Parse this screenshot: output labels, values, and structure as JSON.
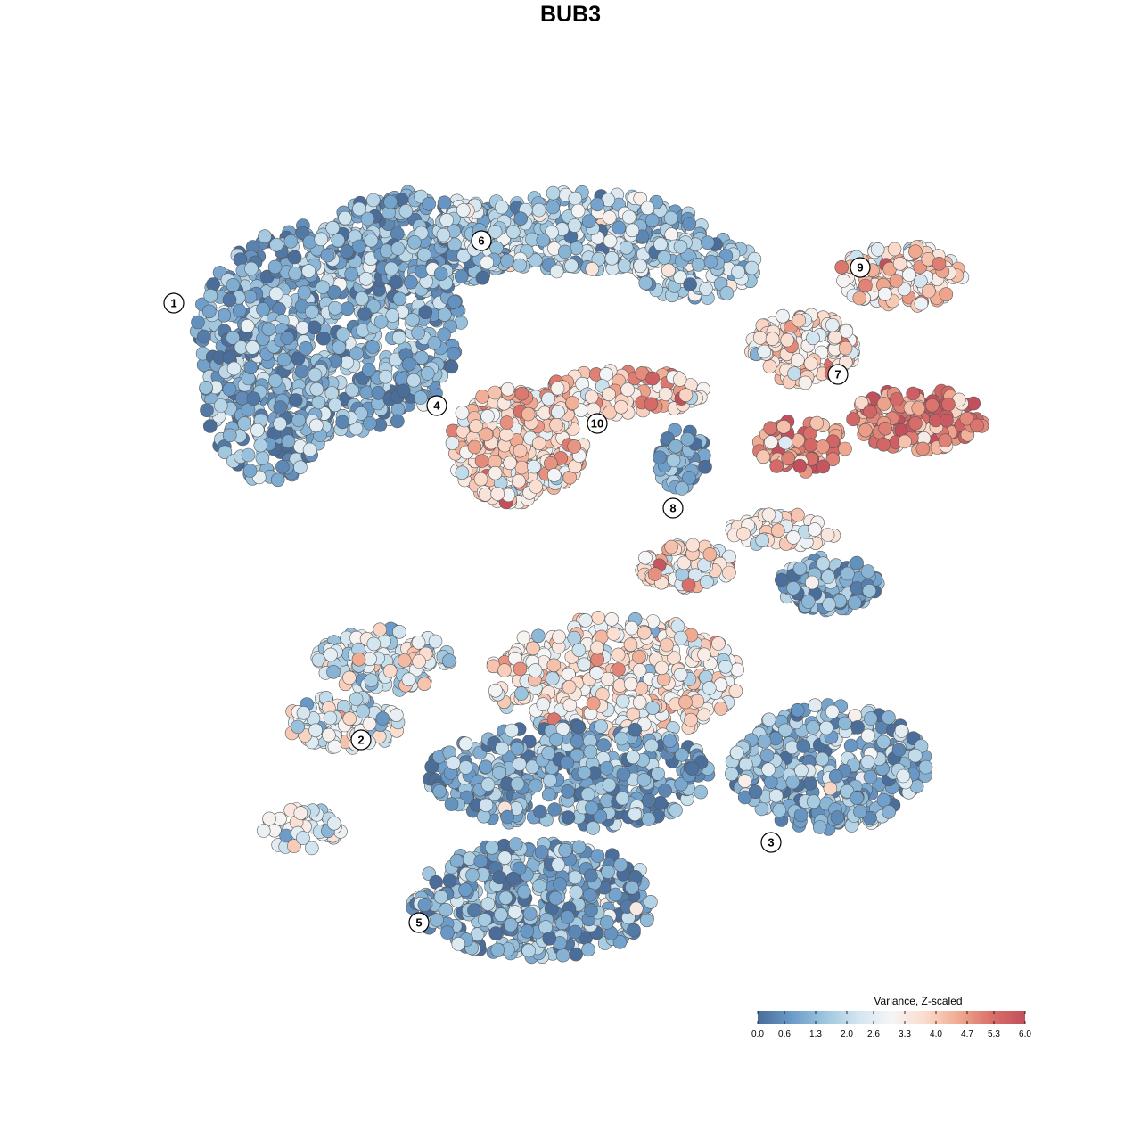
{
  "chart_data": {
    "type": "scatter",
    "title": "BUB3",
    "xlabel": "",
    "ylabel": "",
    "colorbar": {
      "title": "Variance, Z-scaled",
      "min": 0.0,
      "max": 6.0,
      "ticks": [
        "0.0",
        "0.6",
        "1.3",
        "2.0",
        "2.6",
        "3.3",
        "4.0",
        "4.7",
        "5.3",
        "6.0"
      ],
      "tick_values": [
        0.0,
        0.6,
        1.3,
        2.0,
        2.6,
        3.3,
        4.0,
        4.7,
        5.3,
        6.0
      ],
      "colors": [
        "#4a6d99",
        "#6a9ac8",
        "#9dc5de",
        "#d2e5f0",
        "#f5f5f5",
        "#fbdccd",
        "#f0aa90",
        "#d9706a",
        "#c34f5c"
      ],
      "placement": "bottom-right"
    },
    "clusters": [
      {
        "label": "1",
        "x": -8.5,
        "y": 6.2,
        "mean": 1.1
      },
      {
        "label": "2",
        "x": -4.3,
        "y": -3.6,
        "mean": 2.6
      },
      {
        "label": "3",
        "x": 4.9,
        "y": -5.9,
        "mean": 1.2
      },
      {
        "label": "4",
        "x": -2.6,
        "y": 3.9,
        "mean": 3.8
      },
      {
        "label": "5",
        "x": -3.0,
        "y": -7.7,
        "mean": 1.1
      },
      {
        "label": "6",
        "x": -1.6,
        "y": 7.6,
        "mean": 1.8
      },
      {
        "label": "7",
        "x": 6.4,
        "y": 4.6,
        "mean": 5.0
      },
      {
        "label": "8",
        "x": 2.7,
        "y": 1.6,
        "mean": 3.2
      },
      {
        "label": "9",
        "x": 6.9,
        "y": 7.0,
        "mean": 3.6
      },
      {
        "label": "10",
        "x": 1.0,
        "y": 3.5,
        "mean": 1.0
      }
    ],
    "grid": false,
    "legend": "bottom-right"
  }
}
